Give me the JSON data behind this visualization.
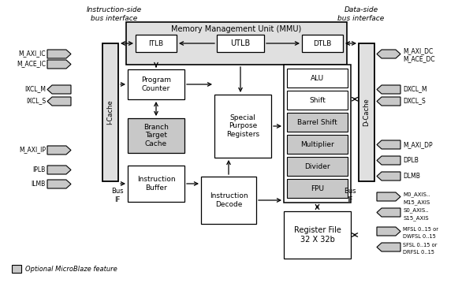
{
  "title": "Memory Management Unit (MMU)",
  "bg_color": "#ffffff",
  "gray": "#c8c8c8",
  "light_gray": "#e0e0e0",
  "dark_border": "#000000",
  "instruction_side_label": "Instruction-side\nbus interface",
  "data_side_label": "Data-side\nbus interface",
  "footer_label": "Optional MicroBlaze feature"
}
